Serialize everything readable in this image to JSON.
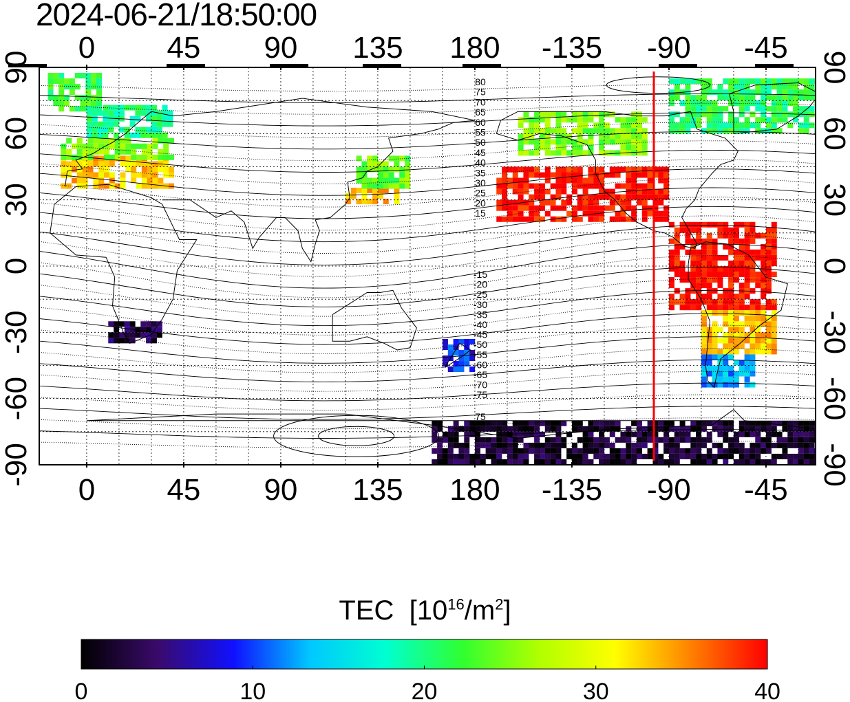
{
  "header": {
    "timestamp": "2024-06-21/18:50:00"
  },
  "map": {
    "projection": "equirectangular",
    "central_longitude": 180,
    "x_axis": {
      "top_ticks": [
        "0",
        "45",
        "90",
        "135",
        "180",
        "-135",
        "-90",
        "-45"
      ],
      "bottom_ticks": [
        "0",
        "45",
        "90",
        "135",
        "180",
        "-135",
        "-90",
        "-45"
      ],
      "tick_longitudes": [
        0,
        45,
        90,
        135,
        180,
        225,
        270,
        315
      ]
    },
    "y_axis": {
      "ticks": [
        "90",
        "60",
        "30",
        "0",
        "-30",
        "-60",
        "-90"
      ],
      "tick_latitudes": [
        90,
        60,
        30,
        0,
        -30,
        -60,
        -90
      ]
    },
    "terminator_longitude": -97,
    "terminator_color": "#ff0000",
    "contour_labels_north": [
      "80",
      "75",
      "70",
      "65",
      "60",
      "55",
      "50",
      "45",
      "40",
      "35",
      "30",
      "25",
      "20",
      "15"
    ],
    "contour_labels_south": [
      "-15",
      "-20",
      "-25",
      "-30",
      "-35",
      "-40",
      "-45",
      "-50",
      "-55",
      "-60",
      "-65",
      "-70",
      "-75"
    ],
    "contour_labels_far_south": [
      "75"
    ]
  },
  "colorbar": {
    "title": "TEC",
    "unit_prefix": "[10",
    "unit_exp": "16",
    "unit_mid": "/m",
    "unit_exp2": "2",
    "unit_suffix": "]",
    "labels": [
      "0",
      "10",
      "20",
      "30",
      "40"
    ],
    "min": 0,
    "max": 40,
    "stops": [
      "#000000",
      "#3a0a6a",
      "#1010ff",
      "#00c8ff",
      "#00ffd0",
      "#30ff30",
      "#b0ff00",
      "#ffff00",
      "#ff8000",
      "#ff0000"
    ]
  },
  "chart_data": {
    "type": "heatmap",
    "title": "2024-06-21/18:50:00",
    "colorbar_label": "TEC [10^16/m^2]",
    "value_range": [
      0,
      40
    ],
    "regions": [
      {
        "lon": [
          -12,
          40
        ],
        "lat": [
          35,
          48
        ],
        "tec": 33
      },
      {
        "lon": [
          -12,
          40
        ],
        "lat": [
          48,
          58
        ],
        "tec": 25
      },
      {
        "lon": [
          0,
          40
        ],
        "lat": [
          58,
          72
        ],
        "tec": 20
      },
      {
        "lon": [
          -18,
          5
        ],
        "lat": [
          70,
          86
        ],
        "tec": 22
      },
      {
        "lon": [
          120,
          145
        ],
        "lat": [
          28,
          35
        ],
        "tec": 33
      },
      {
        "lon": [
          125,
          150
        ],
        "lat": [
          35,
          50
        ],
        "tec": 24
      },
      {
        "lon": [
          10,
          35
        ],
        "lat": [
          -35,
          -25
        ],
        "tec": 3
      },
      {
        "lon": [
          165,
          180
        ],
        "lat": [
          -48,
          -35
        ],
        "tec": 9
      },
      {
        "lon": [
          190,
          270
        ],
        "lat": [
          20,
          45
        ],
        "tec": 40
      },
      {
        "lon": [
          200,
          260
        ],
        "lat": [
          50,
          70
        ],
        "tec": 25
      },
      {
        "lon": [
          270,
          320
        ],
        "lat": [
          -20,
          20
        ],
        "tec": 40
      },
      {
        "lon": [
          285,
          320
        ],
        "lat": [
          -40,
          -20
        ],
        "tec": 33
      },
      {
        "lon": [
          285,
          310
        ],
        "lat": [
          -55,
          -40
        ],
        "tec": 13
      },
      {
        "lon": [
          270,
          345
        ],
        "lat": [
          60,
          85
        ],
        "tec": 21
      },
      {
        "lon": [
          160,
          345
        ],
        "lat": [
          -90,
          -70
        ],
        "tec": 2
      }
    ]
  }
}
